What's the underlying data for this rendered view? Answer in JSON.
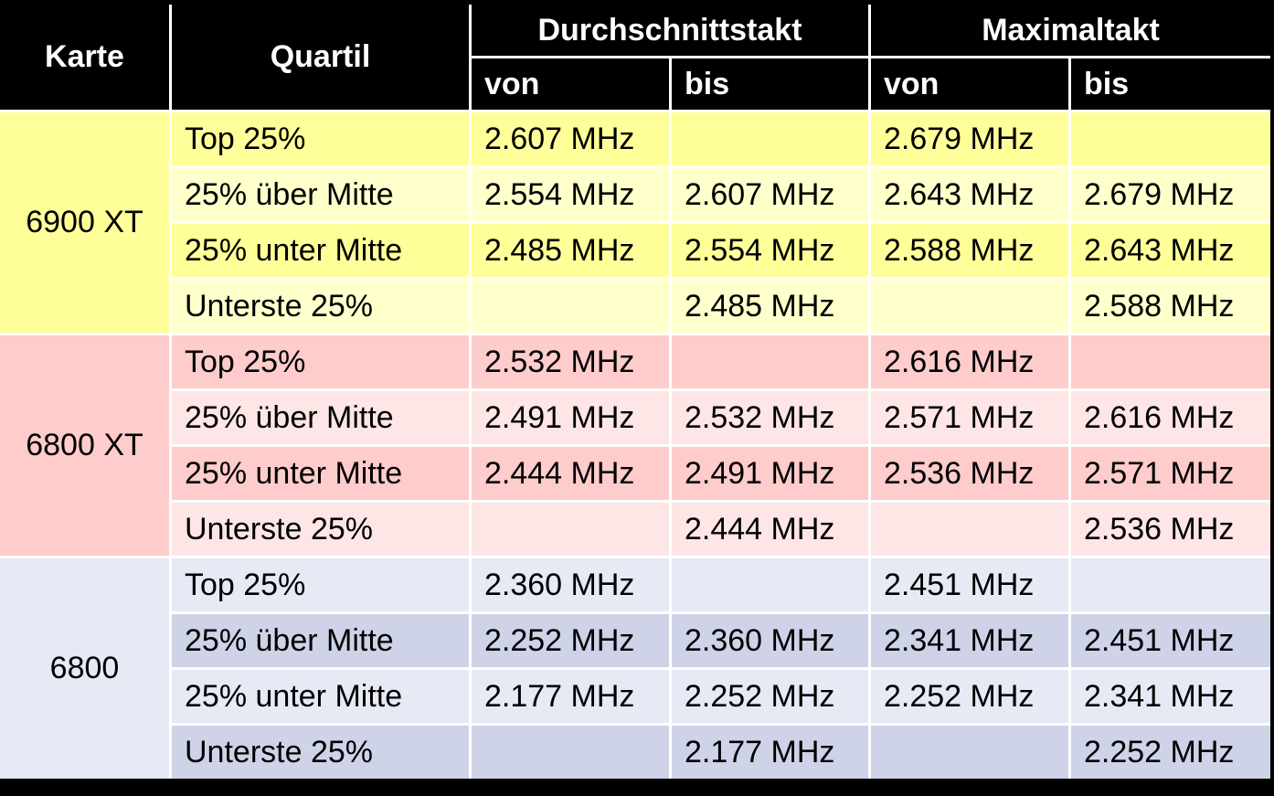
{
  "header": {
    "card": "Karte",
    "quartile": "Quartil",
    "avg_clock": "Durchschnittstakt",
    "max_clock": "Maximaltakt",
    "from": "von",
    "to": "bis"
  },
  "colors": {
    "6900xt_dark": "#ffff99",
    "6900xt_light": "#ffffcc",
    "6800xt_dark": "#ffcccc",
    "6800xt_light": "#ffe6e6",
    "6800_dark": "#ced3e8",
    "6800_light": "#e7e9f4"
  },
  "groups": [
    {
      "card": "6900 XT",
      "card_bg": "#ffff99",
      "rows": [
        {
          "quartile": "Top 25%",
          "avg_from": "2.607 MHz",
          "avg_to": "",
          "max_from": "2.679 MHz",
          "max_to": "",
          "bg": "#ffff99"
        },
        {
          "quartile": "25% über Mitte",
          "avg_from": "2.554 MHz",
          "avg_to": "2.607 MHz",
          "max_from": "2.643 MHz",
          "max_to": "2.679 MHz",
          "bg": "#ffffcc"
        },
        {
          "quartile": "25% unter Mitte",
          "avg_from": "2.485 MHz",
          "avg_to": "2.554 MHz",
          "max_from": "2.588 MHz",
          "max_to": "2.643 MHz",
          "bg": "#ffff99"
        },
        {
          "quartile": "Unterste 25%",
          "avg_from": "",
          "avg_to": "2.485 MHz",
          "max_from": "",
          "max_to": "2.588 MHz",
          "bg": "#ffffcc"
        }
      ]
    },
    {
      "card": "6800 XT",
      "card_bg": "#ffcccc",
      "rows": [
        {
          "quartile": "Top 25%",
          "avg_from": "2.532 MHz",
          "avg_to": "",
          "max_from": "2.616 MHz",
          "max_to": "",
          "bg": "#ffcccc"
        },
        {
          "quartile": "25% über Mitte",
          "avg_from": "2.491 MHz",
          "avg_to": "2.532 MHz",
          "max_from": "2.571 MHz",
          "max_to": "2.616 MHz",
          "bg": "#ffe6e6"
        },
        {
          "quartile": "25% unter Mitte",
          "avg_from": "2.444 MHz",
          "avg_to": "2.491 MHz",
          "max_from": "2.536 MHz",
          "max_to": "2.571 MHz",
          "bg": "#ffcccc"
        },
        {
          "quartile": "Unterste 25%",
          "avg_from": "",
          "avg_to": "2.444 MHz",
          "max_from": "",
          "max_to": "2.536 MHz",
          "bg": "#ffe6e6"
        }
      ]
    },
    {
      "card": "6800",
      "card_bg": "#e7e9f4",
      "rows": [
        {
          "quartile": "Top 25%",
          "avg_from": "2.360 MHz",
          "avg_to": "",
          "max_from": "2.451 MHz",
          "max_to": "",
          "bg": "#e7e9f4"
        },
        {
          "quartile": "25% über Mitte",
          "avg_from": "2.252 MHz",
          "avg_to": "2.360 MHz",
          "max_from": "2.341 MHz",
          "max_to": "2.451 MHz",
          "bg": "#ced3e8"
        },
        {
          "quartile": "25% unter Mitte",
          "avg_from": "2.177 MHz",
          "avg_to": "2.252 MHz",
          "max_from": "2.252 MHz",
          "max_to": "2.341 MHz",
          "bg": "#e7e9f4"
        },
        {
          "quartile": "Unterste 25%",
          "avg_from": "",
          "avg_to": "2.177 MHz",
          "max_from": "",
          "max_to": "2.252 MHz",
          "bg": "#ced3e8"
        }
      ]
    }
  ]
}
